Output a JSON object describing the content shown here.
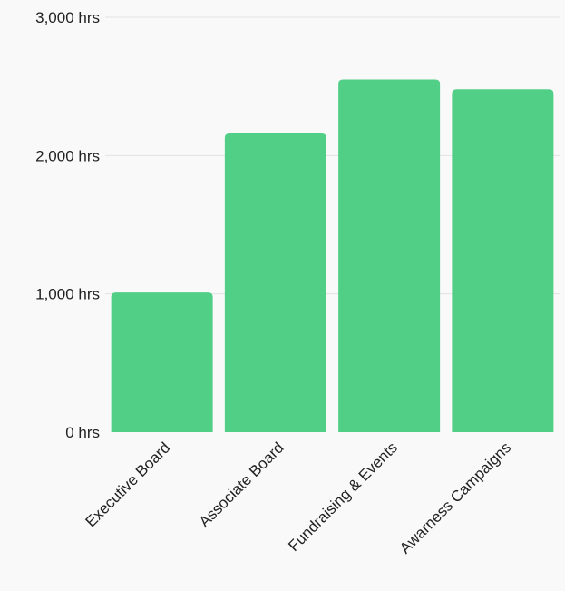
{
  "chart_data": {
    "type": "bar",
    "title": "",
    "xlabel": "",
    "ylabel": "",
    "categories": [
      "Executive Board",
      "Associate Board",
      "Fundraising & Events",
      "Awarness Campaigns"
    ],
    "values": [
      1010,
      2160,
      2550,
      2480
    ],
    "ylim": [
      0,
      3000
    ],
    "yticks": [
      0,
      1000,
      2000,
      3000
    ],
    "ytick_labels": [
      "0 hrs",
      "1,000 hrs",
      "2,000 hrs",
      "3,000 hrs"
    ],
    "grid": true,
    "legend": "none",
    "bar_color": "#52cf87",
    "grid_color": "#e2e2e2",
    "background": "#f9f9f9"
  }
}
